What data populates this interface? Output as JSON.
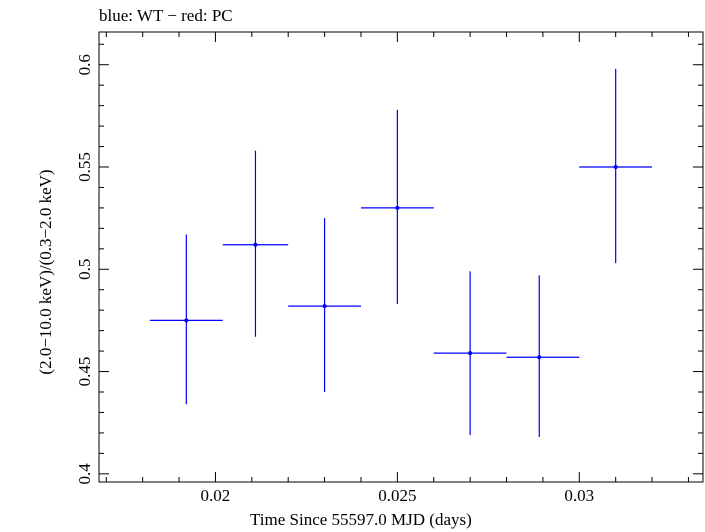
{
  "chart_data": {
    "type": "scatter",
    "title": "blue: WT − red: PC",
    "xlabel": "Time Since 55597.0 MJD (days)",
    "ylabel": "(2.0−10.0 keV)/(0.3−2.0 keV)",
    "xlim": [
      0.0168,
      0.0334
    ],
    "ylim": [
      0.396,
      0.616
    ],
    "x_ticks": [
      0.02,
      0.025,
      0.03
    ],
    "x_tick_labels": [
      "0.02",
      "0.025",
      "0.03"
    ],
    "y_ticks": [
      0.4,
      0.45,
      0.5,
      0.55,
      0.6
    ],
    "y_tick_labels": [
      "0.4",
      "0.45",
      "0.5",
      "0.55",
      "0.6"
    ],
    "grid": false,
    "series": [
      {
        "color": "#0000ff",
        "points": [
          {
            "x": 0.0192,
            "xerr_low": 0.0182,
            "xerr_high": 0.0202,
            "y": 0.475,
            "y_low": 0.434,
            "y_high": 0.517
          },
          {
            "x": 0.0211,
            "xerr_low": 0.0202,
            "xerr_high": 0.022,
            "y": 0.512,
            "y_low": 0.467,
            "y_high": 0.558
          },
          {
            "x": 0.023,
            "xerr_low": 0.022,
            "xerr_high": 0.024,
            "y": 0.482,
            "y_low": 0.44,
            "y_high": 0.525
          },
          {
            "x": 0.025,
            "xerr_low": 0.024,
            "xerr_high": 0.026,
            "y": 0.53,
            "y_low": 0.483,
            "y_high": 0.578
          },
          {
            "x": 0.027,
            "xerr_low": 0.026,
            "xerr_high": 0.028,
            "y": 0.459,
            "y_low": 0.419,
            "y_high": 0.499
          },
          {
            "x": 0.0289,
            "xerr_low": 0.028,
            "xerr_high": 0.03,
            "y": 0.457,
            "y_low": 0.418,
            "y_high": 0.497
          },
          {
            "x": 0.031,
            "xerr_low": 0.03,
            "xerr_high": 0.032,
            "y": 0.55,
            "y_low": 0.503,
            "y_high": 0.598
          }
        ]
      }
    ]
  }
}
